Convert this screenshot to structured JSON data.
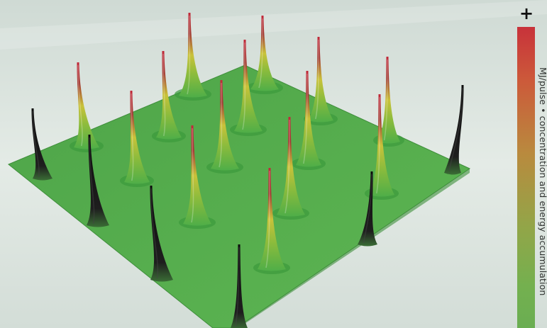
{
  "scale": {
    "plus": "+",
    "label": "MJ/pulse • concentration and energy accumulation"
  },
  "colors": {
    "plane": "#54a84a",
    "peak_high": "#c2293a",
    "peak_mid": "#c9c23a",
    "peak_low": "#4fae48",
    "edge_spike": "#121212"
  }
}
